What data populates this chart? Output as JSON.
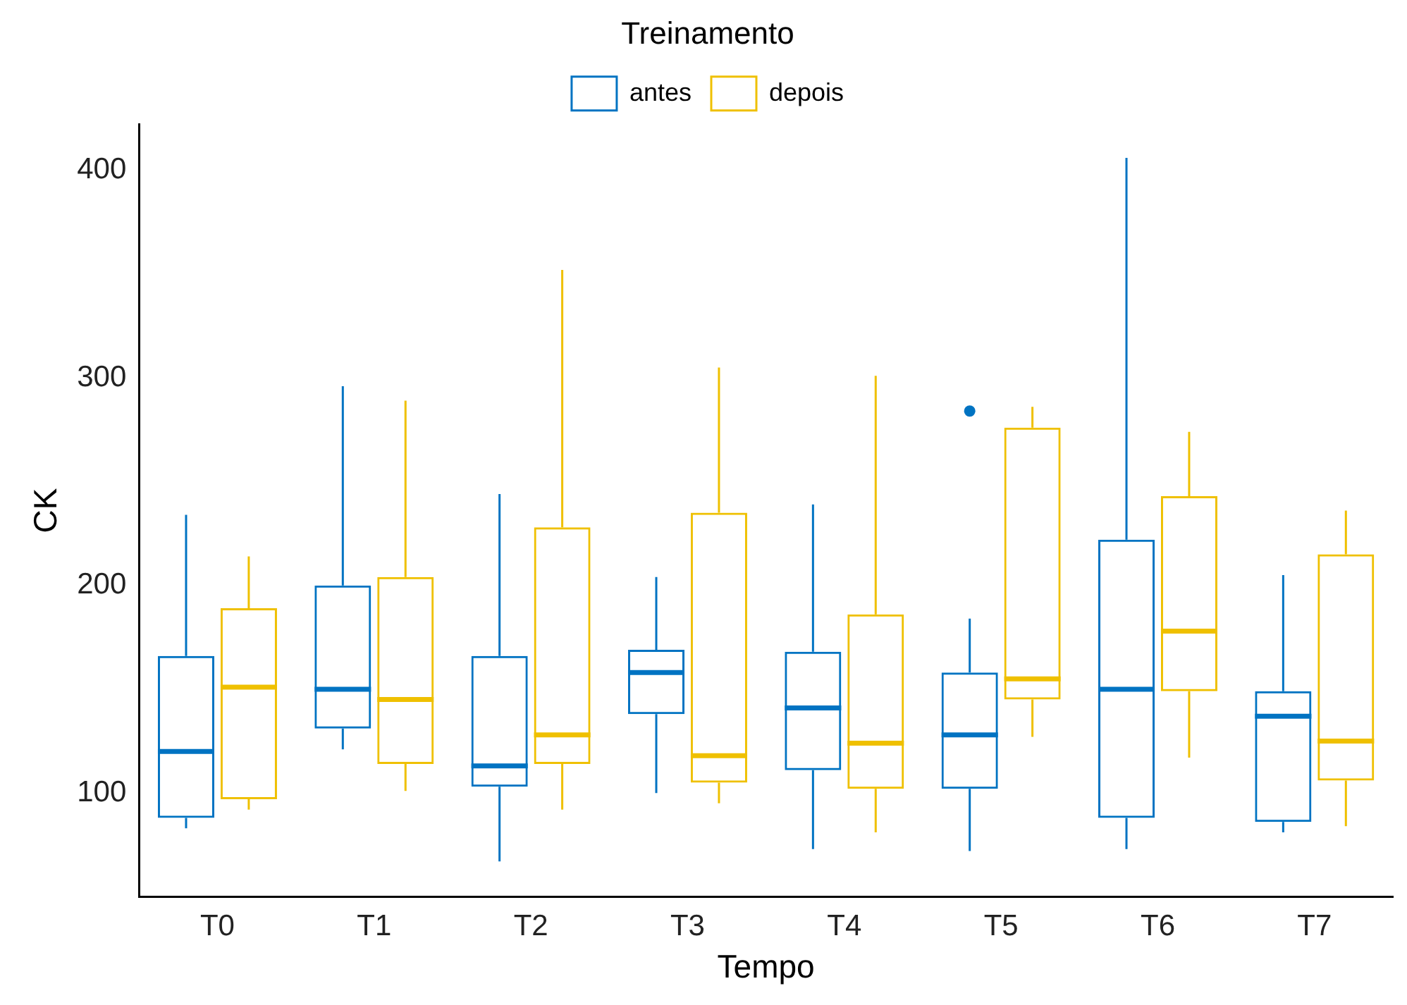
{
  "chart_data": {
    "type": "box",
    "xlabel": "Tempo",
    "ylabel": "CK",
    "legend_title": "Treinamento",
    "legend": "top",
    "grid": false,
    "categories": [
      "T0",
      "T1",
      "T2",
      "T3",
      "T4",
      "T5",
      "T6",
      "T7"
    ],
    "ylim": [
      50,
      422
    ],
    "yticks": [
      100,
      200,
      300,
      400
    ],
    "series": [
      {
        "name": "antes",
        "color": "#0073c2",
        "boxes": [
          {
            "low": 83,
            "q1": 88,
            "median": 120,
            "q3": 166,
            "high": 234
          },
          {
            "low": 121,
            "q1": 131,
            "median": 150,
            "q3": 200,
            "high": 296
          },
          {
            "low": 67,
            "q1": 103,
            "median": 113,
            "q3": 166,
            "high": 244
          },
          {
            "low": 100,
            "q1": 138,
            "median": 158,
            "q3": 169,
            "high": 204
          },
          {
            "low": 73,
            "q1": 111,
            "median": 141,
            "q3": 168,
            "high": 239
          },
          {
            "low": 72,
            "q1": 102,
            "median": 128,
            "q3": 158,
            "high": 184,
            "outliers": [
              284
            ]
          },
          {
            "low": 73,
            "q1": 88,
            "median": 150,
            "q3": 222,
            "high": 406
          },
          {
            "low": 81,
            "q1": 86,
            "median": 137,
            "q3": 149,
            "high": 205
          }
        ]
      },
      {
        "name": "depois",
        "color": "#efc000",
        "boxes": [
          {
            "low": 92,
            "q1": 97,
            "median": 151,
            "q3": 189,
            "high": 214
          },
          {
            "low": 101,
            "q1": 114,
            "median": 145,
            "q3": 204,
            "high": 289
          },
          {
            "low": 92,
            "q1": 114,
            "median": 128,
            "q3": 228,
            "high": 352
          },
          {
            "low": 95,
            "q1": 105,
            "median": 118,
            "q3": 235,
            "high": 305
          },
          {
            "low": 81,
            "q1": 102,
            "median": 124,
            "q3": 186,
            "high": 301
          },
          {
            "low": 127,
            "q1": 145,
            "median": 155,
            "q3": 276,
            "high": 286
          },
          {
            "low": 117,
            "q1": 149,
            "median": 178,
            "q3": 243,
            "high": 274
          },
          {
            "low": 84,
            "q1": 106,
            "median": 125,
            "q3": 215,
            "high": 236
          }
        ]
      }
    ]
  }
}
